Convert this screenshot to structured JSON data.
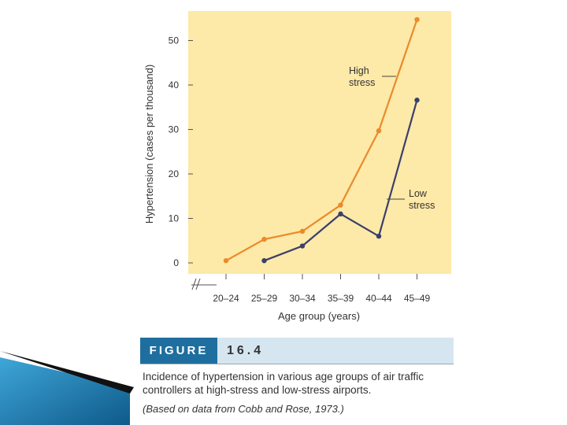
{
  "chart_data": {
    "type": "line",
    "categories": [
      "20–24",
      "25–29",
      "30–34",
      "35–39",
      "40–44",
      "45–49"
    ],
    "series": [
      {
        "name": "High stress",
        "values": [
          0.5,
          5.3,
          7.1,
          13,
          29.7,
          54.7
        ]
      },
      {
        "name": "Low stress",
        "values": [
          null,
          0.5,
          3.8,
          11,
          6,
          36.6
        ]
      }
    ],
    "xlabel": "Age group (years)",
    "ylabel": "Hypertension (cases per thousand)",
    "ylim": [
      0,
      55
    ],
    "yticks": [
      0,
      10,
      20,
      30,
      40,
      50
    ],
    "grid": false,
    "annotations": [
      {
        "series": "High stress",
        "lines": [
          "High",
          "stress"
        ]
      },
      {
        "series": "Low stress",
        "lines": [
          "Low",
          "stress"
        ]
      }
    ],
    "colors": {
      "background": "#fde9a8",
      "High stress": "#ea8a2a",
      "Low stress": "#3a3f6b"
    }
  },
  "figure": {
    "label": "FIGURE",
    "number": "16.4",
    "caption": "Incidence of hypertension in various age groups of air traffic controllers at high-stress and low-stress airports.",
    "source": "(Based on data from Cobb and Rose, 1973.)",
    "colors": {
      "label_bg": "#1e6f9f",
      "band_bg": "#d6e6f0"
    }
  }
}
